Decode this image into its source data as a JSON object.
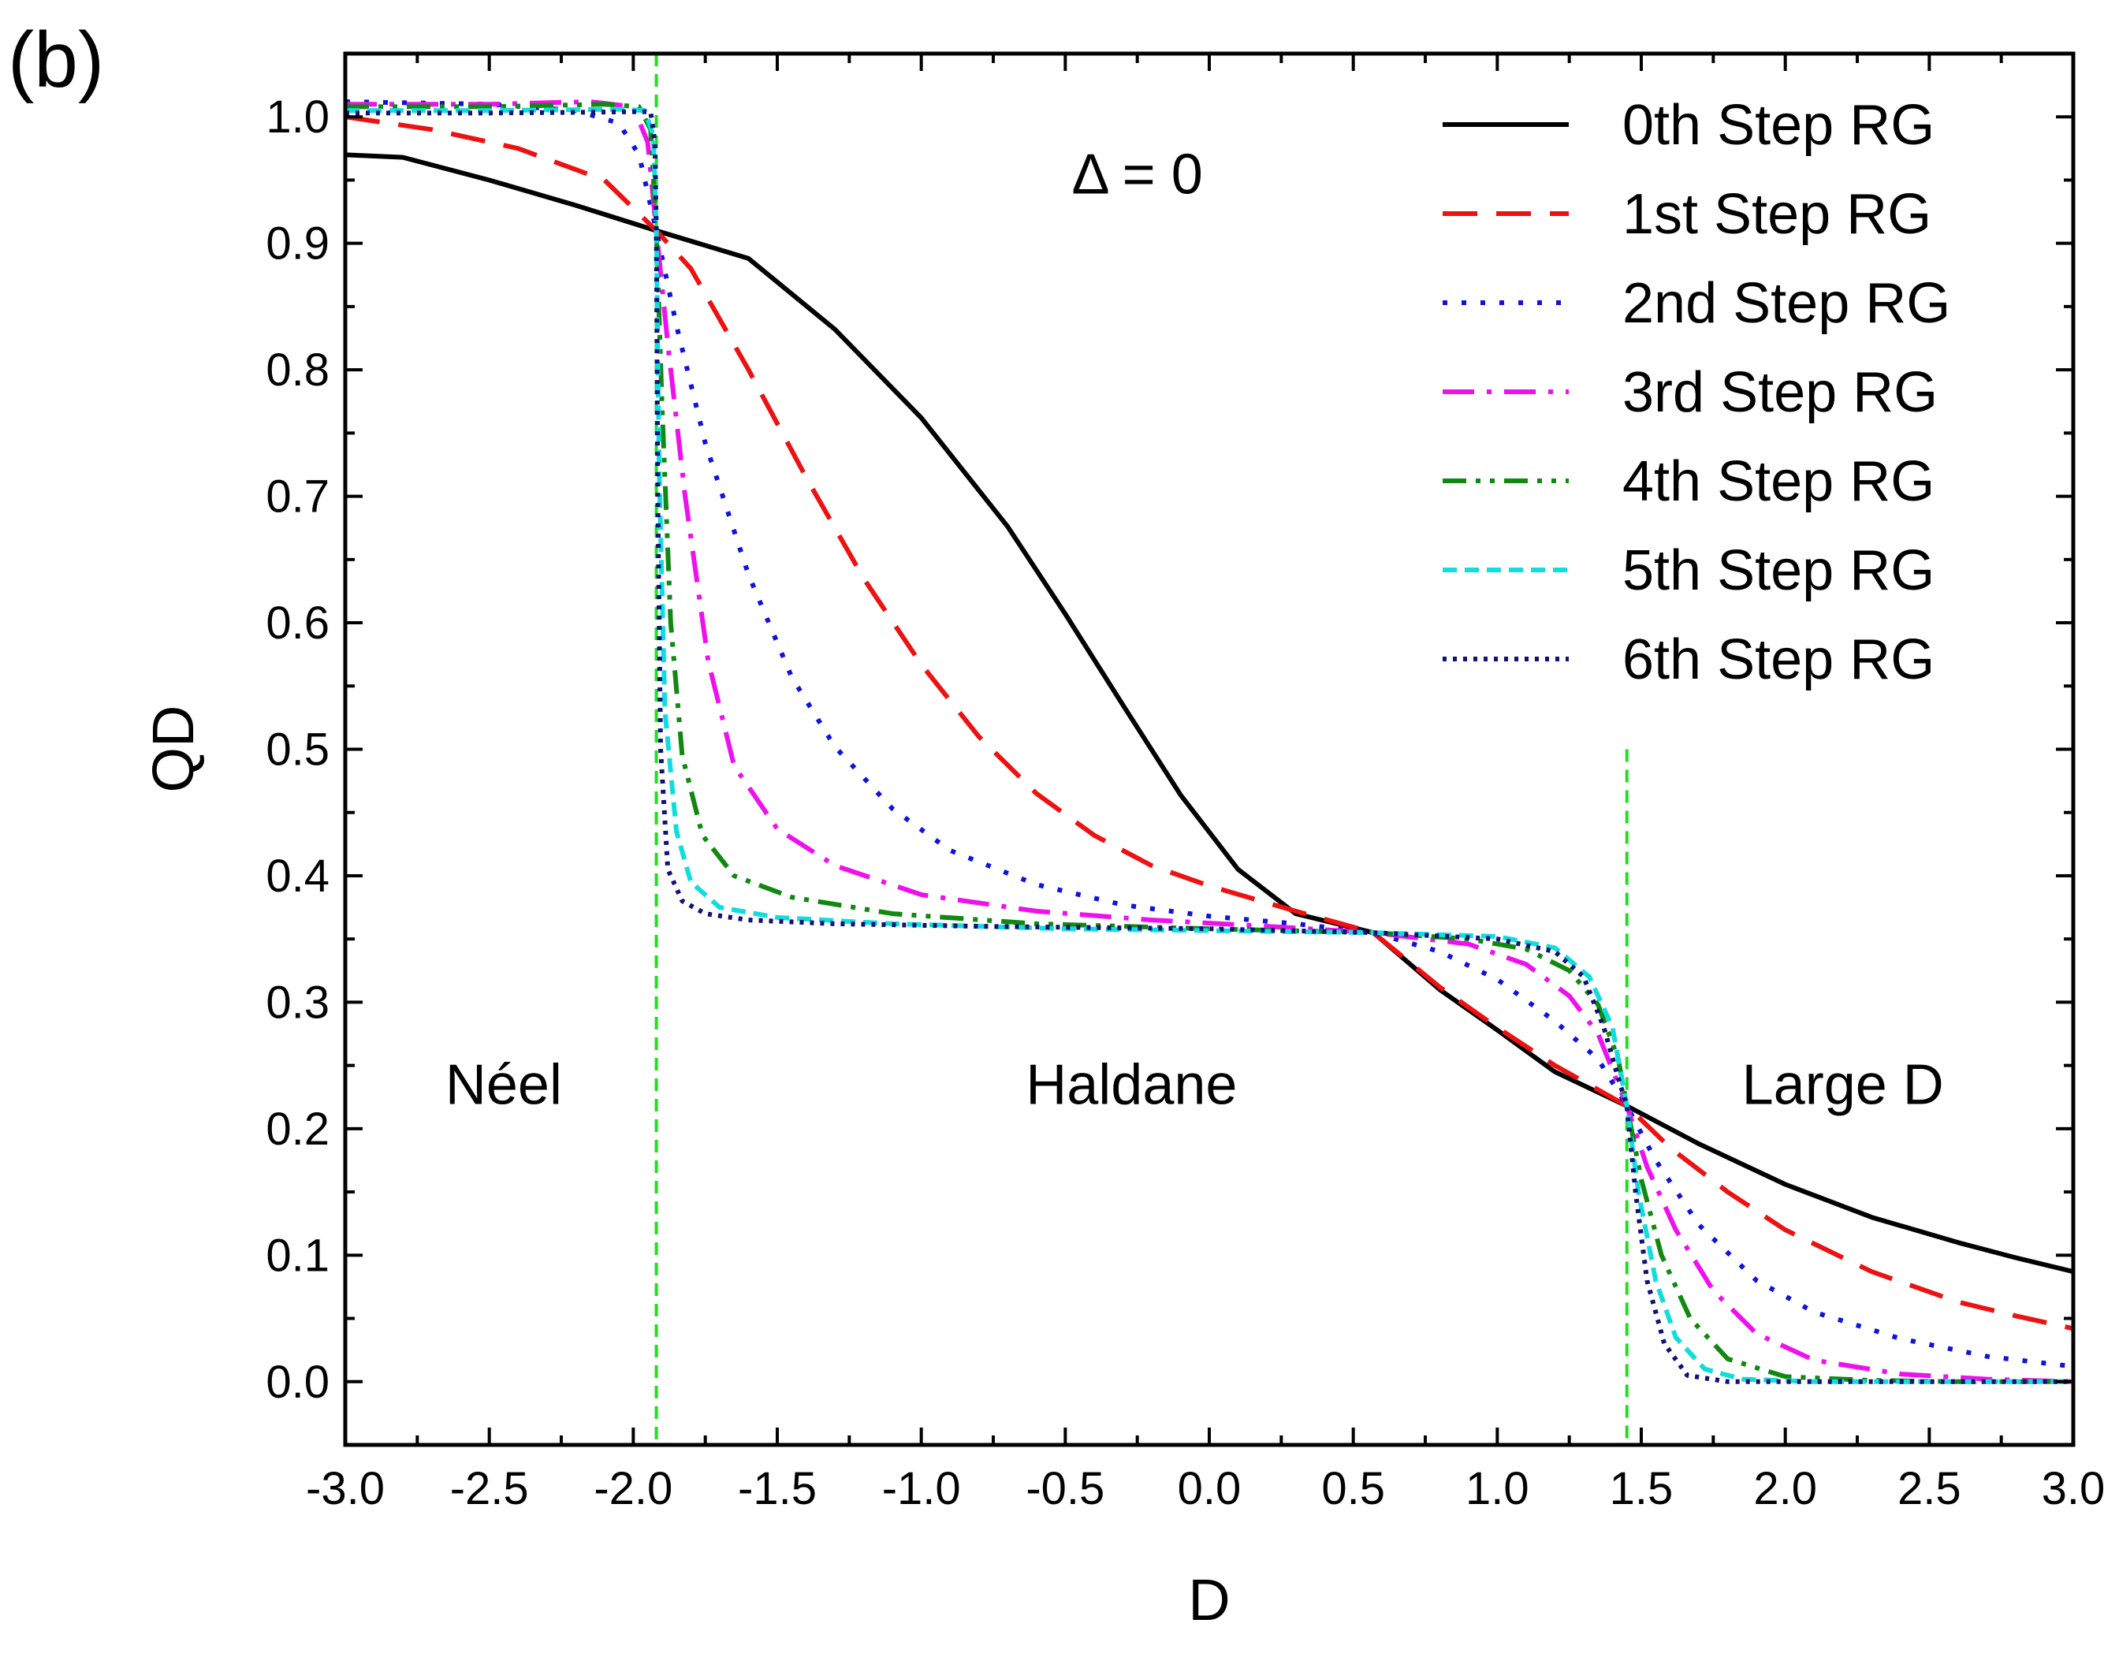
{
  "panel_label": "(b)",
  "chart_data": {
    "type": "line",
    "title": "",
    "xlabel": "D",
    "ylabel": "QD",
    "xlim": [
      -3.0,
      3.0
    ],
    "ylim": [
      -0.05,
      1.05
    ],
    "x_ticks": [
      -3.0,
      -2.5,
      -2.0,
      -1.5,
      -1.0,
      -0.5,
      0.0,
      0.5,
      1.0,
      1.5,
      2.0,
      2.5,
      3.0
    ],
    "x_tick_labels": [
      "-3.0",
      "-2.5",
      "-2.0",
      "-1.5",
      "-1.0",
      "-0.5",
      "0.0",
      "0.5",
      "1.0",
      "1.5",
      "2.0",
      "2.5",
      "3.0"
    ],
    "y_ticks": [
      0.0,
      0.1,
      0.2,
      0.3,
      0.4,
      0.5,
      0.6,
      0.7,
      0.8,
      0.9,
      1.0
    ],
    "y_tick_labels": [
      "0.0",
      "0.1",
      "0.2",
      "0.3",
      "0.4",
      "0.5",
      "0.6",
      "0.7",
      "0.8",
      "0.9",
      "1.0"
    ],
    "grid": false,
    "legend_position": "top-right",
    "annotations": [
      {
        "text": "Δ = 0",
        "x": -0.25,
        "y": 0.955
      },
      {
        "text": "Néel",
        "x": -2.45,
        "y": 0.235
      },
      {
        "text": "Haldane",
        "x": -0.27,
        "y": 0.235
      },
      {
        "text": "Large D",
        "x": 2.2,
        "y": 0.235
      }
    ],
    "critical_lines": [
      {
        "x": -1.92,
        "color": "#22dd22",
        "style": "dashed"
      },
      {
        "x": 1.45,
        "color": "#22dd22",
        "style": "dashed",
        "y_top": 0.5
      }
    ],
    "series": [
      {
        "name": "0th  Step RG",
        "color": "#000000",
        "style": "solid",
        "x": [
          -3.0,
          -2.8,
          -2.5,
          -2.2,
          -1.92,
          -1.6,
          -1.3,
          -1.0,
          -0.7,
          -0.5,
          -0.3,
          -0.1,
          0.1,
          0.3,
          0.57,
          0.8,
          1.0,
          1.2,
          1.45,
          1.7,
          2.0,
          2.3,
          2.6,
          2.8,
          3.0
        ],
        "y": [
          0.97,
          0.968,
          0.95,
          0.93,
          0.91,
          0.888,
          0.832,
          0.762,
          0.676,
          0.607,
          0.535,
          0.464,
          0.405,
          0.37,
          0.355,
          0.31,
          0.278,
          0.245,
          0.218,
          0.188,
          0.156,
          0.13,
          0.11,
          0.098,
          0.087
        ]
      },
      {
        "name": "1st  Step RG",
        "color": "#ee1111",
        "style": "dashed",
        "x": [
          -3.0,
          -2.7,
          -2.4,
          -2.1,
          -1.92,
          -1.8,
          -1.6,
          -1.4,
          -1.2,
          -1.0,
          -0.8,
          -0.6,
          -0.4,
          -0.2,
          0.0,
          0.3,
          0.57,
          0.8,
          1.0,
          1.2,
          1.45,
          1.6,
          1.8,
          2.0,
          2.3,
          2.6,
          2.8,
          3.0
        ],
        "y": [
          1.0,
          0.99,
          0.975,
          0.95,
          0.91,
          0.88,
          0.8,
          0.715,
          0.635,
          0.567,
          0.51,
          0.465,
          0.432,
          0.408,
          0.392,
          0.372,
          0.355,
          0.312,
          0.28,
          0.25,
          0.218,
          0.185,
          0.15,
          0.12,
          0.087,
          0.063,
          0.052,
          0.042
        ]
      },
      {
        "name": "2nd Step RG",
        "color": "#1111dd",
        "style": "dotted",
        "x": [
          -3.0,
          -2.5,
          -2.2,
          -2.05,
          -1.98,
          -1.92,
          -1.85,
          -1.75,
          -1.6,
          -1.45,
          -1.3,
          -1.1,
          -0.9,
          -0.6,
          -0.3,
          0.0,
          0.3,
          0.57,
          0.8,
          1.0,
          1.2,
          1.35,
          1.45,
          1.55,
          1.7,
          1.9,
          2.1,
          2.4,
          2.7,
          3.0
        ],
        "y": [
          1.012,
          1.01,
          1.005,
          0.995,
          0.97,
          0.91,
          0.835,
          0.742,
          0.638,
          0.557,
          0.502,
          0.453,
          0.42,
          0.393,
          0.377,
          0.368,
          0.362,
          0.355,
          0.34,
          0.318,
          0.285,
          0.255,
          0.218,
          0.175,
          0.124,
          0.08,
          0.055,
          0.034,
          0.02,
          0.012
        ]
      },
      {
        "name": "3rd  Step RG",
        "color": "#ee11ee",
        "style": "dashdot",
        "x": [
          -3.0,
          -2.5,
          -2.15,
          -2.0,
          -1.95,
          -1.92,
          -1.88,
          -1.82,
          -1.74,
          -1.65,
          -1.5,
          -1.3,
          -1.0,
          -0.6,
          -0.2,
          0.2,
          0.57,
          0.9,
          1.1,
          1.25,
          1.35,
          1.45,
          1.52,
          1.62,
          1.75,
          1.9,
          2.1,
          2.4,
          2.7,
          3.0
        ],
        "y": [
          1.01,
          1.01,
          1.012,
          1.008,
          0.98,
          0.91,
          0.82,
          0.7,
          0.57,
          0.487,
          0.437,
          0.408,
          0.385,
          0.372,
          0.365,
          0.36,
          0.355,
          0.346,
          0.33,
          0.305,
          0.275,
          0.218,
          0.17,
          0.12,
          0.072,
          0.038,
          0.017,
          0.006,
          0.002,
          0.0
        ]
      },
      {
        "name": "4th  Step RG",
        "color": "#118811",
        "style": "dashdotdot",
        "x": [
          -3.0,
          -2.5,
          -2.1,
          -1.98,
          -1.94,
          -1.92,
          -1.9,
          -1.87,
          -1.83,
          -1.76,
          -1.65,
          -1.45,
          -1.1,
          -0.6,
          0.0,
          0.57,
          0.9,
          1.1,
          1.25,
          1.35,
          1.42,
          1.45,
          1.5,
          1.57,
          1.67,
          1.8,
          2.0,
          2.3,
          2.6,
          3.0
        ],
        "y": [
          1.008,
          1.008,
          1.01,
          1.008,
          0.99,
          0.91,
          0.77,
          0.6,
          0.495,
          0.432,
          0.4,
          0.383,
          0.37,
          0.362,
          0.358,
          0.355,
          0.35,
          0.342,
          0.325,
          0.298,
          0.255,
          0.218,
          0.16,
          0.1,
          0.05,
          0.018,
          0.004,
          0.001,
          0.0,
          0.0
        ]
      },
      {
        "name": "5th  Step RG",
        "color": "#11dddd",
        "style": "shortdash",
        "x": [
          -3.0,
          -2.5,
          -2.05,
          -1.96,
          -1.93,
          -1.92,
          -1.91,
          -1.89,
          -1.85,
          -1.8,
          -1.7,
          -1.5,
          -1.1,
          -0.5,
          0.57,
          1.0,
          1.2,
          1.32,
          1.4,
          1.45,
          1.49,
          1.55,
          1.62,
          1.72,
          1.85,
          2.1,
          2.5,
          3.0
        ],
        "y": [
          1.005,
          1.005,
          1.006,
          1.005,
          0.985,
          0.91,
          0.72,
          0.53,
          0.435,
          0.395,
          0.375,
          0.367,
          0.362,
          0.358,
          0.355,
          0.352,
          0.343,
          0.32,
          0.28,
          0.218,
          0.15,
          0.08,
          0.035,
          0.01,
          0.002,
          0.0,
          0.0,
          0.0
        ]
      },
      {
        "name": "6th  Step RG",
        "color": "#111177",
        "style": "densedot",
        "x": [
          -3.0,
          -2.5,
          -2.0,
          -1.94,
          -1.925,
          -1.92,
          -1.915,
          -1.905,
          -1.88,
          -1.83,
          -1.75,
          -1.6,
          -1.3,
          -0.8,
          0.0,
          0.57,
          1.0,
          1.2,
          1.3,
          1.37,
          1.42,
          1.45,
          1.48,
          1.52,
          1.58,
          1.66,
          1.8,
          2.0,
          2.5,
          3.0
        ],
        "y": [
          1.003,
          1.003,
          1.004,
          1.004,
          0.98,
          0.91,
          0.7,
          0.5,
          0.405,
          0.38,
          0.37,
          0.365,
          0.362,
          0.36,
          0.358,
          0.355,
          0.35,
          0.34,
          0.32,
          0.28,
          0.24,
          0.218,
          0.15,
          0.08,
          0.03,
          0.005,
          0.0,
          0.0,
          0.0,
          0.0
        ]
      }
    ]
  }
}
